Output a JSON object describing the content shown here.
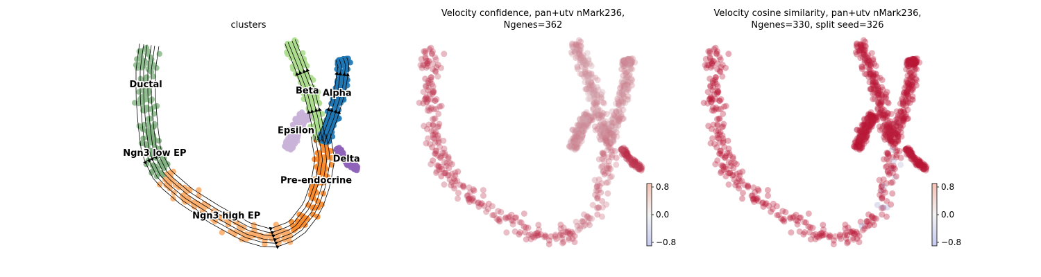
{
  "chart_data": [
    {
      "type": "scatter",
      "title": "clusters",
      "legend": "on data",
      "grid": false,
      "clusters": [
        {
          "name": "Ductal",
          "color": "#8fbc8f"
        },
        {
          "name": "Ngn3 low EP",
          "color": "#7fb07f"
        },
        {
          "name": "Ngn3 high EP",
          "color": "#fdae6b"
        },
        {
          "name": "Pre-endocrine",
          "color": "#f98a2a"
        },
        {
          "name": "Beta",
          "color": "#addd8e"
        },
        {
          "name": "Alpha",
          "color": "#1f77b4"
        },
        {
          "name": "Epsilon",
          "color": "#c9b3d8"
        },
        {
          "name": "Delta",
          "color": "#8e63b8"
        }
      ],
      "overlay": "velocity streamlines"
    },
    {
      "type": "scatter",
      "title_lines": [
        "Velocity confidence, pan+utv nMark236,",
        "Ngenes=362"
      ],
      "colorbar": {
        "ticks": [
          "0.8",
          "0.0",
          "−0.8"
        ],
        "range": [
          -0.9,
          0.9
        ],
        "cmap": "coolwarm"
      }
    },
    {
      "type": "scatter",
      "title_lines": [
        "Velocity cosine similarity, pan+utv nMark236,",
        "Ngenes=330, split seed=326"
      ],
      "colorbar": {
        "ticks": [
          "0.8",
          "0.0",
          "−0.8"
        ],
        "range": [
          -0.9,
          0.9
        ],
        "cmap": "coolwarm"
      }
    }
  ]
}
